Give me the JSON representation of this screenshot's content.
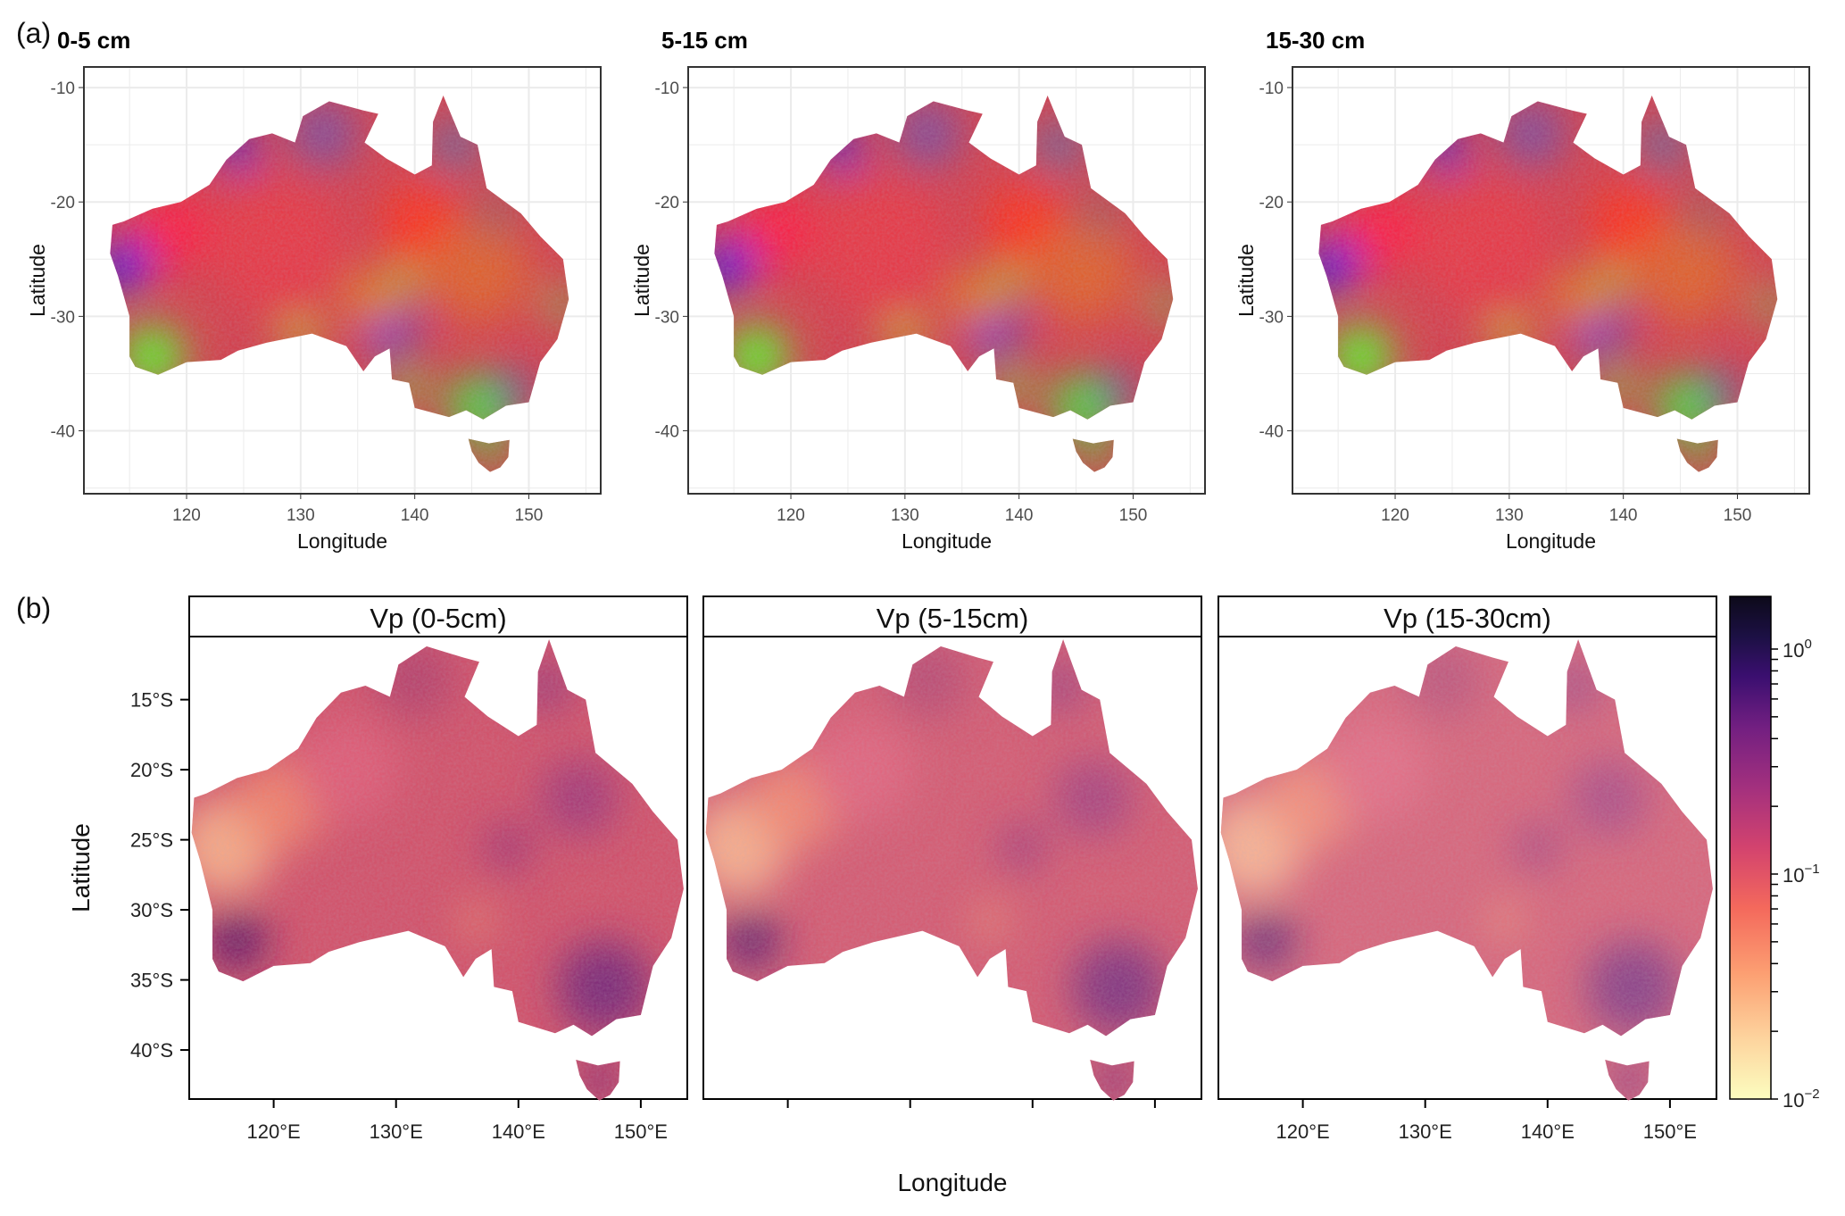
{
  "labels": {
    "a": "(a)",
    "b": "(b)"
  },
  "chart_data": [
    {
      "type": "heatmap",
      "group": "(a)",
      "description_type": "rgb composite map",
      "panels": [
        {
          "title": "0-5 cm"
        },
        {
          "title": "5-15 cm"
        },
        {
          "title": "15-30 cm"
        }
      ],
      "xlabel": "Longitude",
      "ylabel": "Latitude",
      "xticks": [
        120,
        130,
        140,
        150
      ],
      "yticks": [
        -10,
        -20,
        -30,
        -40
      ],
      "xtick_labels": [
        "120",
        "130",
        "140",
        "150"
      ],
      "ytick_labels": [
        "-10",
        "-20",
        "-30",
        "-40"
      ],
      "xlim": [
        111.0,
        156.3
      ],
      "ylim": [
        -45.5,
        -8.2
      ],
      "grid": true
    },
    {
      "type": "heatmap",
      "group": "(b)",
      "panels": [
        {
          "title": "Vp (0-5cm)"
        },
        {
          "title": "Vp (5-15cm)"
        },
        {
          "title": "Vp (15-30cm)"
        }
      ],
      "xlabel": "Longitude",
      "ylabel": "Latitude",
      "xticks": [
        120,
        130,
        140,
        150
      ],
      "yticks": [
        -15,
        -20,
        -25,
        -30,
        -35,
        -40
      ],
      "xtick_labels": [
        "120°E",
        "130°E",
        "140°E",
        "150°E"
      ],
      "ytick_labels": [
        "15°S",
        "20°S",
        "25°S",
        "30°S",
        "35°S",
        "40°S"
      ],
      "xlim": [
        113.1,
        153.8
      ],
      "ylim": [
        -43.5,
        -10.5
      ],
      "grid": false,
      "colorbar": {
        "scale": "log",
        "range": [
          0.01,
          1.7
        ],
        "ticks": [
          1,
          0.1,
          0.01
        ],
        "tick_labels": [
          {
            "base": "10",
            "exp": "0"
          },
          {
            "base": "10",
            "exp": "−1"
          },
          {
            "base": "10",
            "exp": "−2"
          }
        ],
        "colormap": "magma (reversed)"
      }
    }
  ]
}
